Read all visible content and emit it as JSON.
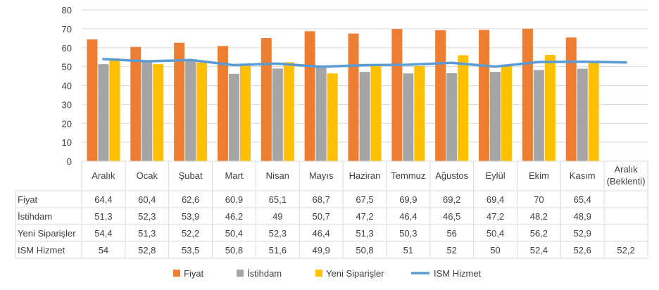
{
  "colors": {
    "fiyat": "#ED7D31",
    "istihdam": "#A5A5A5",
    "yeni_siparisler": "#FFC000",
    "ism_hizmet": "#5B9BD5",
    "grid": "#D9D9D9",
    "text": "#404040"
  },
  "chart_data": {
    "type": "bar",
    "categories": [
      "Aralık",
      "Ocak",
      "Şubat",
      "Mart",
      "Nisan",
      "Mayıs",
      "Haziran",
      "Temmuz",
      "Ağustos",
      "Eylül",
      "Ekim",
      "Kasım",
      "Aralık\n(Beklenti)"
    ],
    "ylim": [
      0,
      80
    ],
    "yticks": [
      0,
      10,
      20,
      30,
      40,
      50,
      60,
      70,
      80
    ],
    "grid": true,
    "legend": "bottom",
    "data_table": true,
    "series": [
      {
        "name": "Fiyat",
        "type": "bar",
        "values": [
          64.4,
          60.4,
          62.6,
          60.9,
          65.1,
          68.7,
          67.5,
          69.9,
          69.2,
          69.4,
          70,
          65.4,
          null
        ],
        "labels": [
          "64,4",
          "60,4",
          "62,6",
          "60,9",
          "65,1",
          "68,7",
          "67,5",
          "69,9",
          "69,2",
          "69,4",
          "70",
          "65,4",
          ""
        ]
      },
      {
        "name": "İstihdam",
        "type": "bar",
        "values": [
          51.3,
          52.3,
          53.9,
          46.2,
          49,
          50.7,
          47.2,
          46.4,
          46.5,
          47.2,
          48.2,
          48.9,
          null
        ],
        "labels": [
          "51,3",
          "52,3",
          "53,9",
          "46,2",
          "49",
          "50,7",
          "47,2",
          "46,4",
          "46,5",
          "47,2",
          "48,2",
          "48,9",
          ""
        ]
      },
      {
        "name": "Yeni Siparişler",
        "type": "bar",
        "values": [
          54.4,
          51.3,
          52.2,
          50.4,
          52.3,
          46.4,
          51.3,
          50.3,
          56,
          50.4,
          56.2,
          52.9,
          null
        ],
        "labels": [
          "54,4",
          "51,3",
          "52,2",
          "50,4",
          "52,3",
          "46,4",
          "51,3",
          "50,3",
          "56",
          "50,4",
          "56,2",
          "52,9",
          ""
        ]
      },
      {
        "name": "ISM Hizmet",
        "type": "line",
        "values": [
          54,
          52.8,
          53.5,
          50.8,
          51.6,
          49.9,
          50.8,
          51,
          52,
          50,
          52.4,
          52.6,
          52.2
        ],
        "labels": [
          "54",
          "52,8",
          "53,5",
          "50,8",
          "51,6",
          "49,9",
          "50,8",
          "51",
          "52",
          "50",
          "52,4",
          "52,6",
          "52,2"
        ]
      }
    ]
  }
}
